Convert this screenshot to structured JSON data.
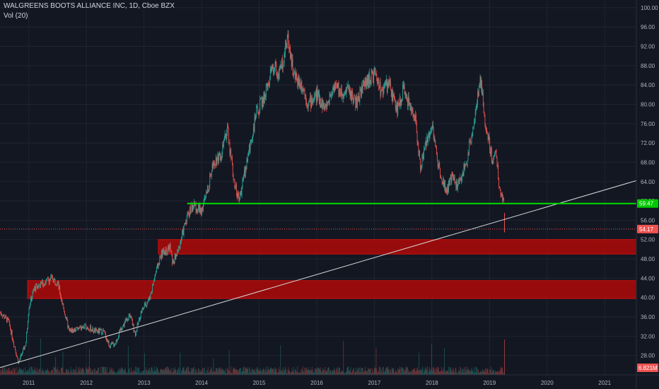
{
  "header": {
    "title": "WALGREENS BOOTS ALLIANCE INC, 1D, Cboe BZX",
    "indicator": "Vol (20)"
  },
  "colors": {
    "background": "#131722",
    "grid": "#1f2430",
    "up": "#26a69a",
    "down": "#ef5350",
    "support_line": "#00e000",
    "zone": "#a30b0b",
    "trendline": "#d8d8d8",
    "price_line": "#ef5350"
  },
  "chart_data": {
    "type": "candlestick",
    "ylim": [
      24,
      101
    ],
    "xlim": [
      2010.5,
      2021.55
    ],
    "y_ticks": [
      "100.00",
      "96.00",
      "92.00",
      "88.00",
      "84.00",
      "80.00",
      "76.00",
      "72.00",
      "68.00",
      "64.00",
      "60.00",
      "56.00",
      "52.00",
      "48.00",
      "44.00",
      "40.00",
      "36.00",
      "32.00",
      "28.00"
    ],
    "y_tick_values": [
      100,
      96,
      92,
      88,
      84,
      80,
      76,
      72,
      68,
      64,
      60,
      56,
      52,
      48,
      44,
      40,
      36,
      32,
      28
    ],
    "x_ticks": [
      "2011",
      "2012",
      "2013",
      "2014",
      "2015",
      "2016",
      "2017",
      "2018",
      "2019",
      "2020",
      "2021"
    ],
    "x_tick_values": [
      2011,
      2012,
      2013,
      2014,
      2015,
      2016,
      2017,
      2018,
      2019,
      2020,
      2021
    ],
    "price_path": [
      [
        2010.5,
        37.0
      ],
      [
        2010.65,
        35.0
      ],
      [
        2010.75,
        30.0
      ],
      [
        2010.82,
        26.5
      ],
      [
        2010.95,
        30.5
      ],
      [
        2011.0,
        38.0
      ],
      [
        2011.1,
        42.0
      ],
      [
        2011.25,
        43.0
      ],
      [
        2011.4,
        44.0
      ],
      [
        2011.5,
        43.0
      ],
      [
        2011.6,
        38.0
      ],
      [
        2011.7,
        33.0
      ],
      [
        2011.85,
        33.5
      ],
      [
        2012.0,
        34.0
      ],
      [
        2012.15,
        33.0
      ],
      [
        2012.3,
        33.0
      ],
      [
        2012.4,
        30.0
      ],
      [
        2012.5,
        30.5
      ],
      [
        2012.6,
        33.5
      ],
      [
        2012.75,
        36.5
      ],
      [
        2012.85,
        32.5
      ],
      [
        2012.95,
        37.0
      ],
      [
        2013.0,
        38.0
      ],
      [
        2013.1,
        40.0
      ],
      [
        2013.2,
        45.0
      ],
      [
        2013.3,
        49.0
      ],
      [
        2013.45,
        50.5
      ],
      [
        2013.5,
        47.0
      ],
      [
        2013.6,
        50.0
      ],
      [
        2013.75,
        57.0
      ],
      [
        2013.85,
        59.0
      ],
      [
        2014.0,
        58.0
      ],
      [
        2014.1,
        62.0
      ],
      [
        2014.2,
        68.0
      ],
      [
        2014.35,
        70.0
      ],
      [
        2014.45,
        75.0
      ],
      [
        2014.55,
        65.0
      ],
      [
        2014.65,
        60.0
      ],
      [
        2014.75,
        66.0
      ],
      [
        2014.85,
        72.0
      ],
      [
        2014.95,
        78.0
      ],
      [
        2015.1,
        82.0
      ],
      [
        2015.25,
        88.0
      ],
      [
        2015.35,
        86.0
      ],
      [
        2015.5,
        94.0
      ],
      [
        2015.6,
        86.0
      ],
      [
        2015.75,
        84.0
      ],
      [
        2015.85,
        80.0
      ],
      [
        2016.0,
        82.0
      ],
      [
        2016.15,
        79.0
      ],
      [
        2016.3,
        84.0
      ],
      [
        2016.45,
        82.0
      ],
      [
        2016.55,
        83.0
      ],
      [
        2016.7,
        80.0
      ],
      [
        2016.8,
        84.0
      ],
      [
        2017.0,
        86.0
      ],
      [
        2017.1,
        83.0
      ],
      [
        2017.25,
        84.0
      ],
      [
        2017.4,
        79.0
      ],
      [
        2017.5,
        83.0
      ],
      [
        2017.6,
        80.0
      ],
      [
        2017.7,
        78.0
      ],
      [
        2017.8,
        67.0
      ],
      [
        2017.9,
        72.0
      ],
      [
        2018.0,
        76.0
      ],
      [
        2018.1,
        68.0
      ],
      [
        2018.25,
        62.0
      ],
      [
        2018.35,
        65.0
      ],
      [
        2018.45,
        63.0
      ],
      [
        2018.6,
        68.0
      ],
      [
        2018.75,
        78.0
      ],
      [
        2018.85,
        85.0
      ],
      [
        2018.92,
        76.0
      ],
      [
        2019.0,
        72.0
      ],
      [
        2019.05,
        68.0
      ],
      [
        2019.1,
        71.0
      ],
      [
        2019.18,
        62.0
      ],
      [
        2019.25,
        60.0
      ]
    ],
    "horizontal_levels": [
      {
        "price": 59.47,
        "label": "59.47",
        "from": 2013.75
      },
      {
        "price": 54.17,
        "label": "54.17",
        "from": 2010.5
      }
    ],
    "zones": [
      {
        "from_x": 2013.25,
        "to_x": 2021.55,
        "low": 49.0,
        "high": 52.0
      },
      {
        "from_x": 2010.98,
        "to_x": 2021.55,
        "low": 39.8,
        "high": 43.5
      }
    ],
    "trendline": {
      "x1": 2010.5,
      "y1": 25.5,
      "x2": 2021.55,
      "y2": 64.2
    },
    "volume_readout": "6.821M"
  }
}
